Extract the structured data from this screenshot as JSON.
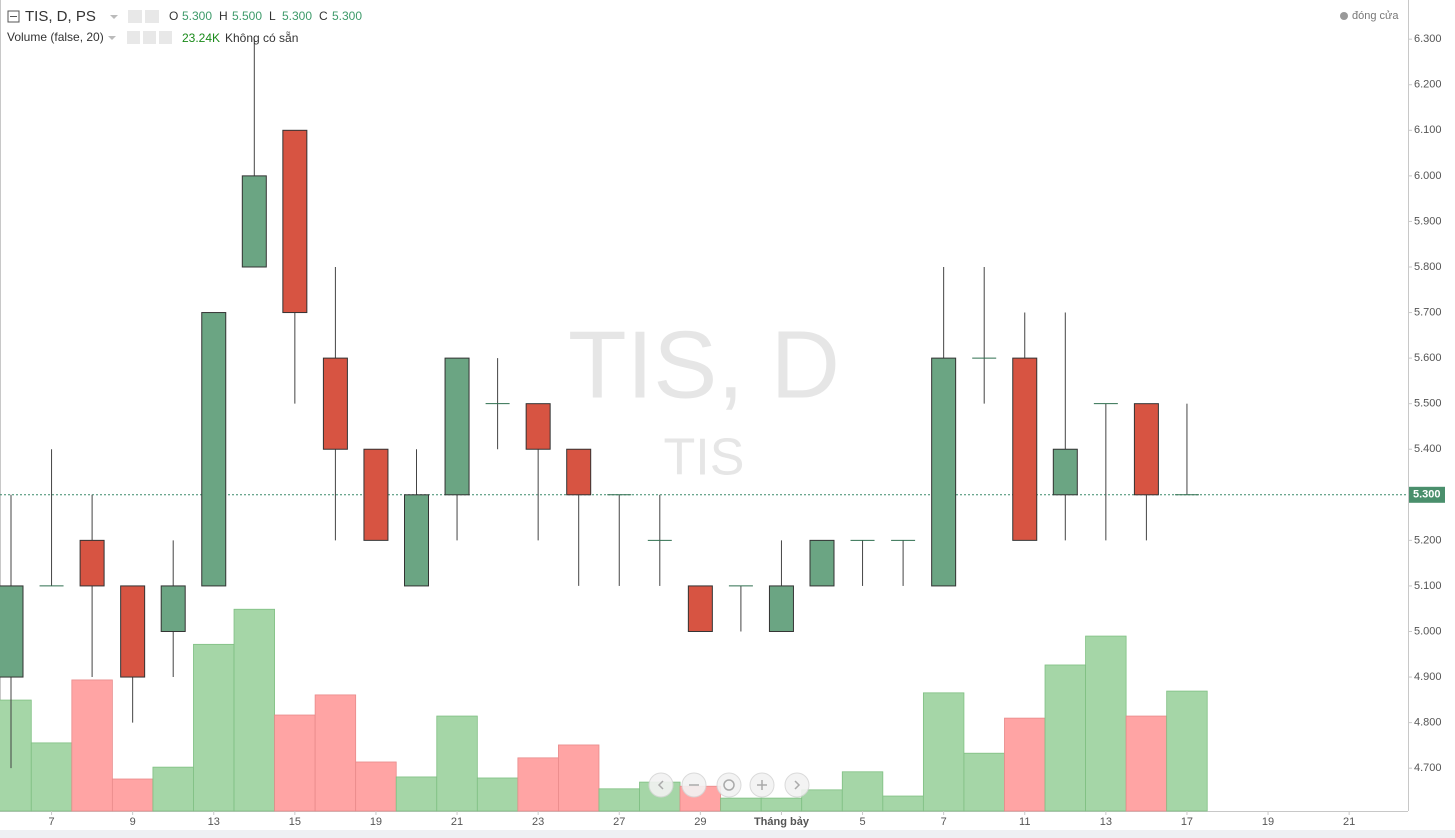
{
  "chart_data": {
    "type": "candlestick",
    "title": "TIS, D, PS",
    "legend": {
      "labels": [
        "O",
        "H",
        "L",
        "C"
      ],
      "values": [
        5.3,
        5.5,
        5.3,
        5.3
      ],
      "value_labels": [
        "5.300",
        "5.500",
        "5.300",
        "5.300"
      ]
    },
    "close_legend": "đóng cửa",
    "watermark": "TIS, D",
    "watermark_sub": "TIS",
    "categories": [
      null,
      "7",
      null,
      "9",
      null,
      "13",
      null,
      "15",
      null,
      "19",
      null,
      "21",
      null,
      "23",
      null,
      "27",
      null,
      "29",
      null,
      "Tháng bảy",
      null,
      "5",
      null,
      "7",
      null,
      "11",
      null,
      "13",
      null,
      "17",
      null,
      "19",
      null,
      "21"
    ],
    "open": [
      4.9,
      5.1,
      5.2,
      5.1,
      5.0,
      5.1,
      5.8,
      6.1,
      5.6,
      5.4,
      5.1,
      5.3,
      5.5,
      5.5,
      5.4,
      5.3,
      5.2,
      5.1,
      5.1,
      5.0,
      5.1,
      5.2,
      5.2,
      5.1,
      5.6,
      5.6,
      5.3,
      5.5,
      5.5,
      5.3,
      null,
      null,
      null,
      null
    ],
    "high": [
      5.3,
      5.4,
      5.3,
      5.1,
      5.2,
      5.7,
      6.3,
      6.1,
      5.8,
      5.4,
      5.4,
      5.6,
      5.6,
      5.5,
      5.4,
      5.3,
      5.3,
      5.1,
      5.1,
      5.2,
      5.2,
      5.2,
      5.2,
      5.8,
      5.8,
      5.7,
      5.7,
      5.5,
      5.5,
      5.5,
      null,
      null,
      null,
      null
    ],
    "low": [
      4.7,
      5.1,
      4.9,
      4.8,
      4.9,
      5.1,
      5.8,
      5.5,
      5.2,
      5.2,
      5.1,
      5.2,
      5.4,
      5.2,
      5.1,
      5.1,
      5.1,
      5.0,
      5.0,
      5.0,
      5.1,
      5.1,
      5.1,
      5.1,
      5.5,
      5.2,
      5.2,
      5.2,
      5.2,
      5.3,
      null,
      null,
      null,
      null
    ],
    "close": [
      5.1,
      5.1,
      5.1,
      4.9,
      5.1,
      5.7,
      6.0,
      5.7,
      5.4,
      5.2,
      5.3,
      5.6,
      5.5,
      5.4,
      5.3,
      5.3,
      5.2,
      5.0,
      5.1,
      5.1,
      5.2,
      5.2,
      5.2,
      5.6,
      5.6,
      5.2,
      5.4,
      5.5,
      5.3,
      5.3,
      null,
      null,
      null,
      null
    ],
    "up_color": "#6ba583",
    "down_color": "#d75442",
    "ylim": [
      4.606,
      6.386
    ],
    "yticks": [
      {
        "value": 4.7,
        "label": "4.700"
      },
      {
        "value": 4.8,
        "label": "4.800"
      },
      {
        "value": 4.9,
        "label": "4.900"
      },
      {
        "value": 5.0,
        "label": "5.000"
      },
      {
        "value": 5.1,
        "label": "5.100"
      },
      {
        "value": 5.2,
        "label": "5.200"
      },
      {
        "value": 5.3,
        "label": "5.300"
      },
      {
        "value": 5.4,
        "label": "5.400"
      },
      {
        "value": 5.5,
        "label": "5.500"
      },
      {
        "value": 5.6,
        "label": "5.600"
      },
      {
        "value": 5.7,
        "label": "5.700"
      },
      {
        "value": 5.8,
        "label": "5.800"
      },
      {
        "value": 5.9,
        "label": "5.900"
      },
      {
        "value": 6.0,
        "label": "6.000"
      },
      {
        "value": 6.1,
        "label": "6.100"
      },
      {
        "value": 6.2,
        "label": "6.200"
      },
      {
        "value": 6.3,
        "label": "6.300"
      }
    ],
    "last_price": {
      "value": 5.3,
      "label": "5.300"
    },
    "volume": {
      "title": "Volume (false, 20)",
      "values": [
        21500,
        13200,
        25400,
        6200,
        8500,
        32300,
        39100,
        18600,
        22500,
        9500,
        6600,
        18400,
        6400,
        10300,
        12800,
        4300,
        5600,
        4800,
        2500,
        2500,
        4100,
        7600,
        2900,
        22900,
        11200,
        18000,
        28300,
        33900,
        18400,
        23240,
        null,
        null,
        null,
        null
      ],
      "last_label": "23.24K",
      "status": "Không có sẵn",
      "up_color": "#a5d6a7",
      "down_color": "#ffa4a4",
      "vlim": [
        0,
        100000
      ]
    }
  }
}
